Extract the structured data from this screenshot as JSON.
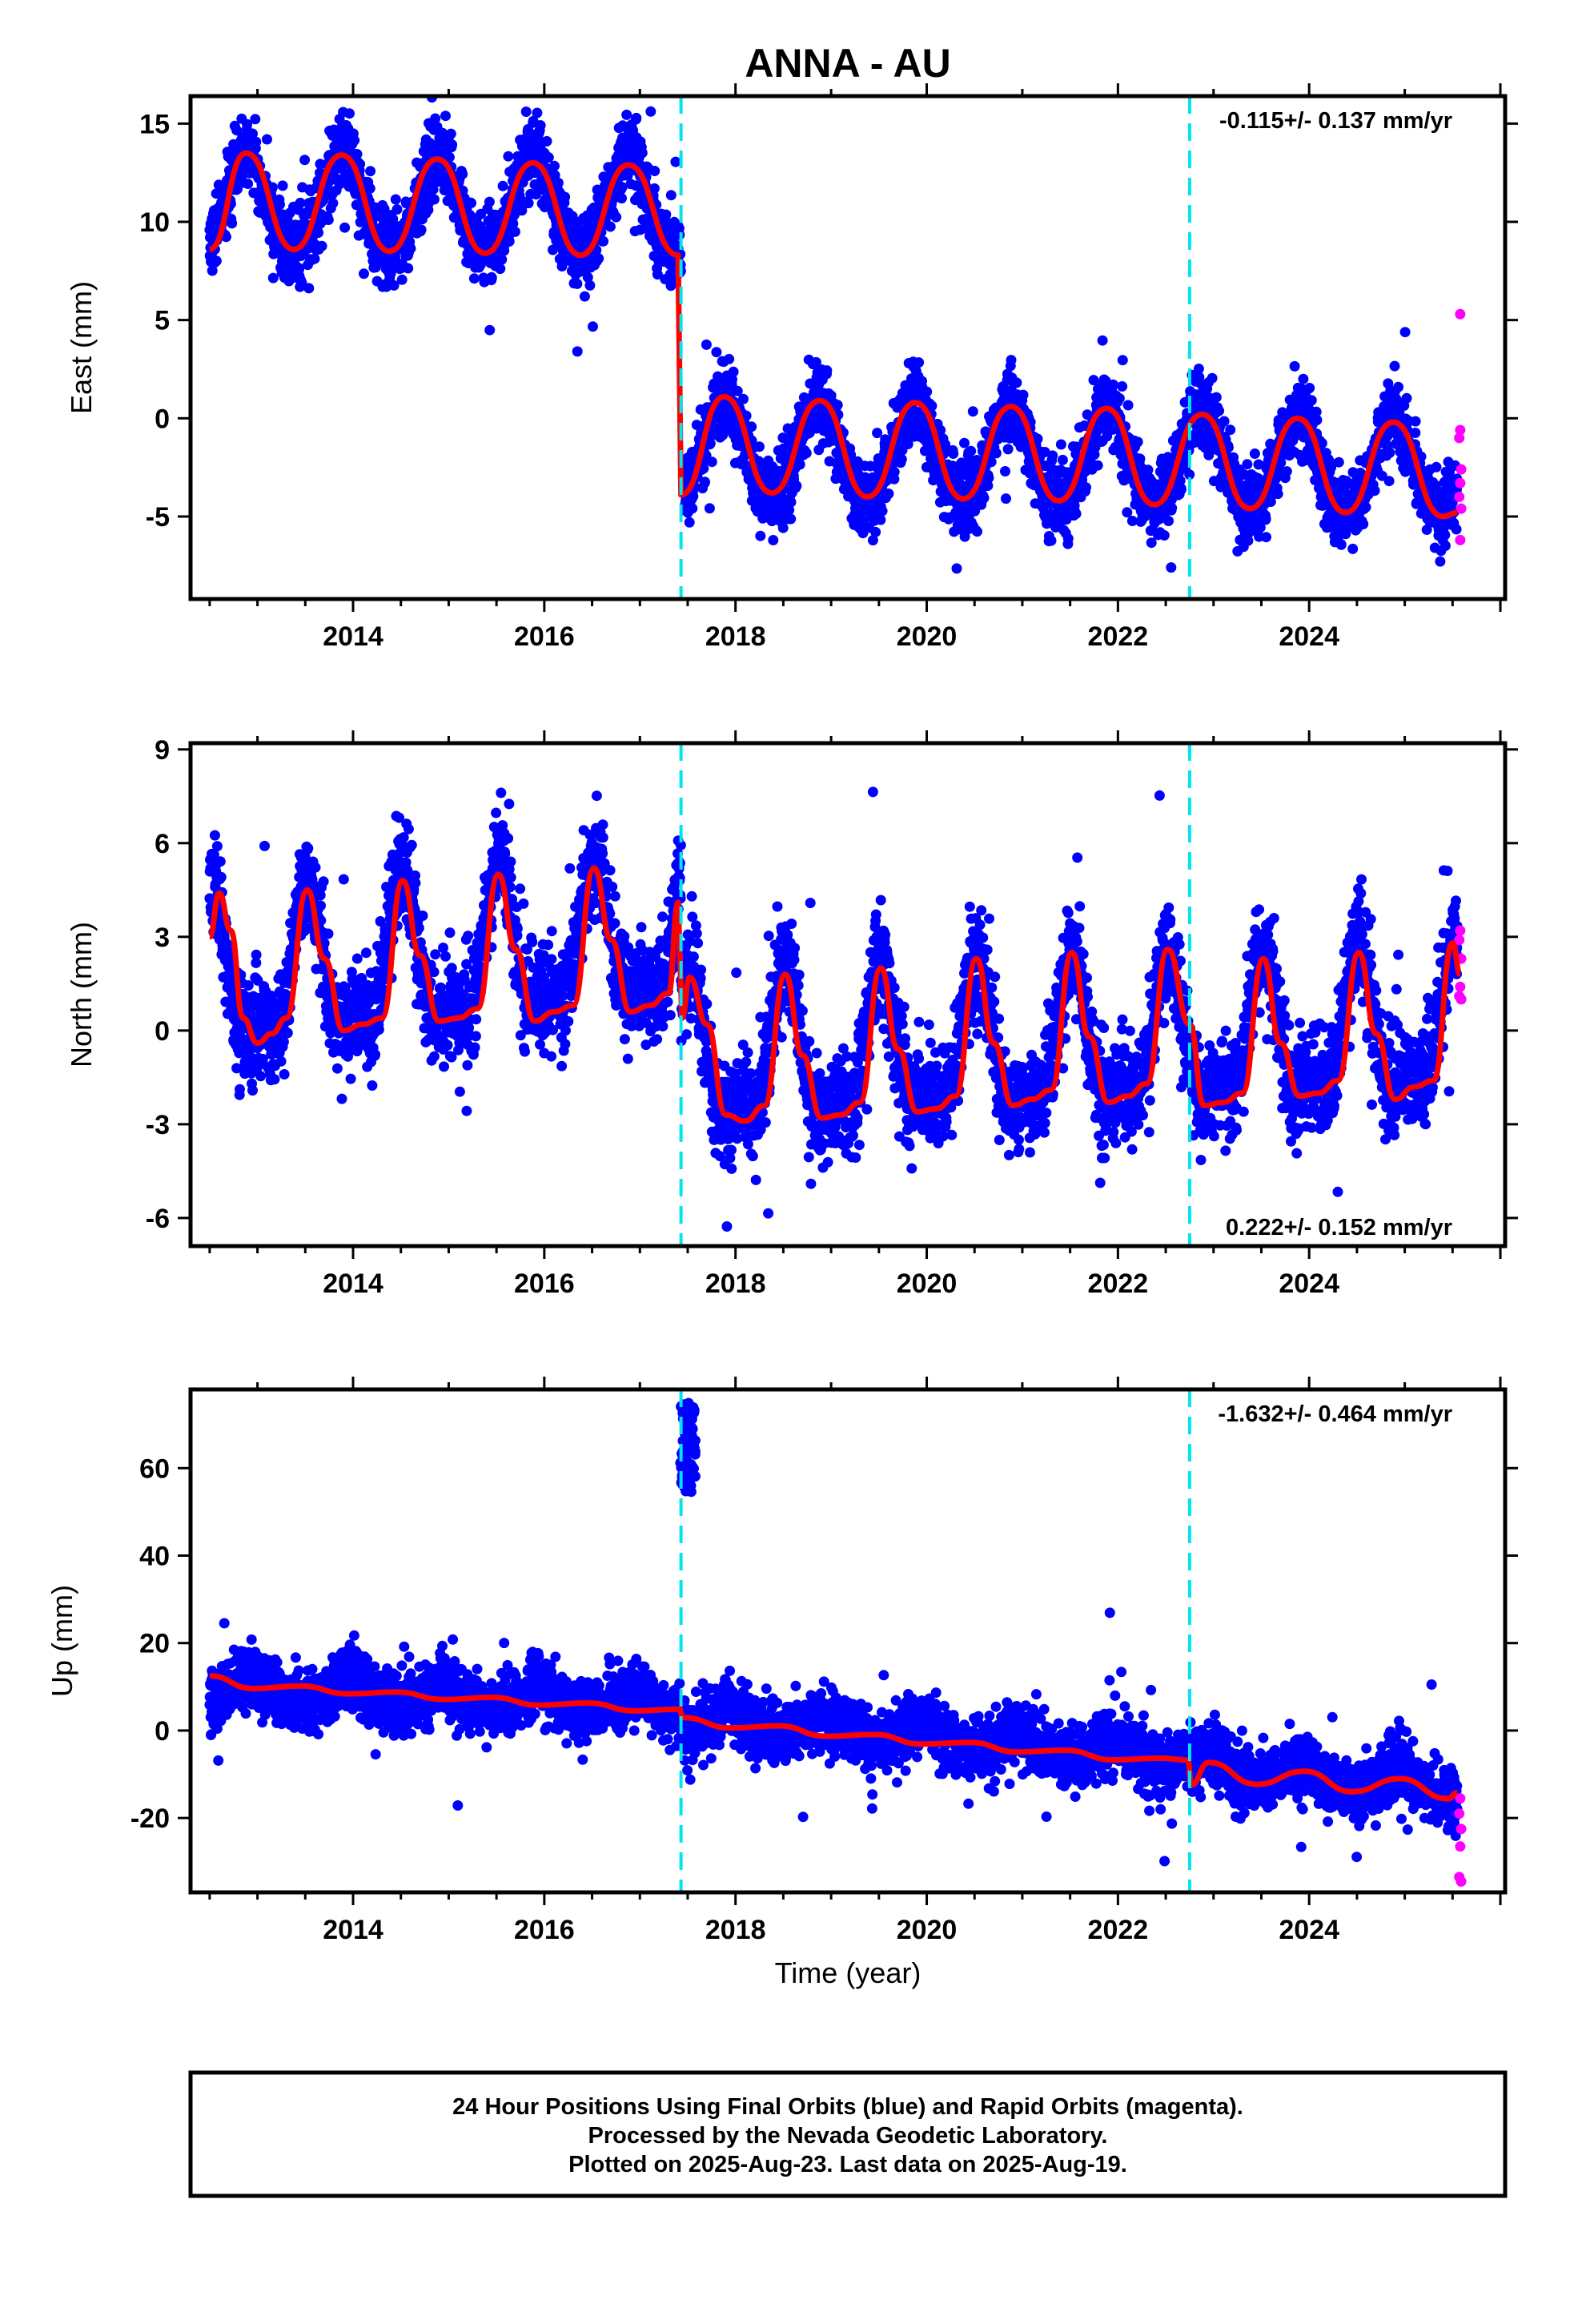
{
  "title": "ANNA - AU",
  "caption": {
    "lines": [
      "24 Hour Positions Using Final Orbits (blue) and Rapid Orbits (magenta).",
      "Processed by the Nevada Geodetic Laboratory.",
      "Plotted on 2025-Aug-23. Last data on 2025-Aug-19."
    ]
  },
  "colors": {
    "final_orbits": "#0000ff",
    "rapid_orbits": "#ff00ff",
    "model_fit": "#ff0000",
    "event_lines": "#00e5ee",
    "frame": "#000000"
  },
  "chart_data": [
    {
      "type": "scatter",
      "component": "east",
      "ylabel": "East (mm)",
      "xlabel": "",
      "xlim": [
        2012.3,
        2026.05
      ],
      "ylim": [
        -9.2,
        16.4
      ],
      "yticks": [
        -5,
        0,
        5,
        10,
        15
      ],
      "xticks": [
        2014,
        2016,
        2018,
        2020,
        2022,
        2024
      ],
      "rate_text": "-0.115+/- 0.137 mm/yr",
      "rate_position": "top-right",
      "event_lines_x": [
        2017.43,
        2022.75
      ],
      "series": [
        {
          "role": "final_orbits",
          "x_start": 2012.5,
          "x_end": 2025.55,
          "segments": [
            {
              "from": 2012.5,
              "to": 2017.43,
              "offset": 10.8,
              "trend": 0.0,
              "annual_amp": 2.4,
              "annual_peak": 0.88,
              "semi_amp": 0.3
            },
            {
              "from": 2017.43,
              "to": 2025.55,
              "offset": -1.6,
              "trend": -0.115,
              "annual_amp": 2.45,
              "annual_peak": 0.88,
              "semi_amp": 0.3
            }
          ],
          "noise_sd": 1.25
        },
        {
          "role": "rapid_orbits",
          "points": [
            [
              2025.58,
              5.3
            ],
            [
              2025.58,
              -0.6
            ],
            [
              2025.57,
              -1.0
            ],
            [
              2025.59,
              -2.6
            ],
            [
              2025.58,
              -3.3
            ],
            [
              2025.57,
              -4.0
            ],
            [
              2025.59,
              -4.6
            ],
            [
              2025.58,
              -6.2
            ]
          ]
        }
      ],
      "model": [
        [
          2012.5,
          8.6
        ],
        [
          2012.88,
          13.5
        ],
        [
          2013.38,
          8.6
        ],
        [
          2013.88,
          13.4
        ],
        [
          2014.38,
          8.5
        ],
        [
          2014.88,
          13.2
        ],
        [
          2015.38,
          8.4
        ],
        [
          2015.88,
          13.0
        ],
        [
          2016.38,
          8.3
        ],
        [
          2016.88,
          12.9
        ],
        [
          2017.4,
          8.3
        ],
        [
          2017.43,
          -3.9
        ],
        [
          2017.88,
          1.1
        ],
        [
          2018.38,
          -3.8
        ],
        [
          2018.88,
          0.9
        ],
        [
          2019.38,
          -4.0
        ],
        [
          2019.88,
          0.8
        ],
        [
          2020.38,
          -4.1
        ],
        [
          2020.88,
          0.6
        ],
        [
          2021.38,
          -4.2
        ],
        [
          2021.88,
          0.5
        ],
        [
          2022.38,
          -4.4
        ],
        [
          2022.88,
          0.2
        ],
        [
          2023.38,
          -4.6
        ],
        [
          2023.88,
          0.0
        ],
        [
          2024.38,
          -4.8
        ],
        [
          2024.88,
          -0.2
        ],
        [
          2025.4,
          -5.0
        ],
        [
          2025.55,
          -4.8
        ]
      ]
    },
    {
      "type": "scatter",
      "component": "north",
      "ylabel": "North (mm)",
      "xlabel": "",
      "xlim": [
        2012.3,
        2026.05
      ],
      "ylim": [
        -6.9,
        9.2
      ],
      "yticks": [
        -6,
        -3,
        0,
        3,
        6,
        9
      ],
      "xticks": [
        2014,
        2016,
        2018,
        2020,
        2022,
        2024
      ],
      "rate_text": "0.222+/- 0.152 mm/yr",
      "rate_position": "bottom-right",
      "event_lines_x": [
        2017.43,
        2022.75
      ],
      "series": [
        {
          "role": "final_orbits",
          "x_start": 2012.5,
          "x_end": 2025.55,
          "segments": [
            {
              "from": 2012.5,
              "to": 2017.43,
              "offset": 1.4,
              "trend": 0.3,
              "annual_amp": 2.2,
              "annual_peak": 0.52,
              "semi_amp": 0.9
            },
            {
              "from": 2017.43,
              "to": 2025.55,
              "offset": -1.1,
              "trend": 0.12,
              "annual_amp": 2.2,
              "annual_peak": 0.52,
              "semi_amp": 0.9
            }
          ],
          "noise_sd": 1.05
        },
        {
          "role": "rapid_orbits",
          "points": [
            [
              2025.58,
              3.2
            ],
            [
              2025.57,
              2.9
            ],
            [
              2025.59,
              2.3
            ],
            [
              2025.58,
              1.4
            ],
            [
              2025.57,
              1.1
            ],
            [
              2025.59,
              1.0
            ]
          ]
        }
      ],
      "model": [
        [
          2012.5,
          3.0
        ],
        [
          2012.6,
          4.4
        ],
        [
          2012.72,
          3.2
        ],
        [
          2012.85,
          0.4
        ],
        [
          2013.0,
          -0.4
        ],
        [
          2013.15,
          -0.1
        ],
        [
          2013.3,
          0.4
        ],
        [
          2013.52,
          4.5
        ],
        [
          2013.7,
          2.3
        ],
        [
          2013.9,
          0.0
        ],
        [
          2014.1,
          0.2
        ],
        [
          2014.3,
          0.4
        ],
        [
          2014.52,
          4.8
        ],
        [
          2014.7,
          2.4
        ],
        [
          2014.9,
          0.3
        ],
        [
          2015.1,
          0.4
        ],
        [
          2015.3,
          0.7
        ],
        [
          2015.52,
          5.0
        ],
        [
          2015.7,
          2.6
        ],
        [
          2015.9,
          0.3
        ],
        [
          2016.1,
          0.6
        ],
        [
          2016.3,
          0.8
        ],
        [
          2016.52,
          5.2
        ],
        [
          2016.7,
          2.9
        ],
        [
          2016.9,
          0.6
        ],
        [
          2017.1,
          0.8
        ],
        [
          2017.3,
          1.2
        ],
        [
          2017.4,
          4.1
        ],
        [
          2017.44,
          0.4
        ],
        [
          2017.52,
          1.7
        ],
        [
          2017.7,
          0.2
        ],
        [
          2017.9,
          -2.7
        ],
        [
          2018.1,
          -2.9
        ],
        [
          2018.3,
          -2.4
        ],
        [
          2018.52,
          1.8
        ],
        [
          2018.7,
          -0.8
        ],
        [
          2018.9,
          -2.8
        ],
        [
          2019.1,
          -2.7
        ],
        [
          2019.3,
          -2.3
        ],
        [
          2019.52,
          2.0
        ],
        [
          2019.7,
          -0.6
        ],
        [
          2019.9,
          -2.6
        ],
        [
          2020.1,
          -2.5
        ],
        [
          2020.3,
          -2.1
        ],
        [
          2020.52,
          2.3
        ],
        [
          2020.7,
          -0.4
        ],
        [
          2020.9,
          -2.4
        ],
        [
          2021.1,
          -2.2
        ],
        [
          2021.3,
          -1.9
        ],
        [
          2021.52,
          2.5
        ],
        [
          2021.7,
          -0.2
        ],
        [
          2021.9,
          -2.3
        ],
        [
          2022.1,
          -2.1
        ],
        [
          2022.3,
          -1.7
        ],
        [
          2022.52,
          2.6
        ],
        [
          2022.75,
          0.2
        ],
        [
          2022.9,
          -2.4
        ],
        [
          2023.1,
          -2.3
        ],
        [
          2023.3,
          -2.0
        ],
        [
          2023.52,
          2.3
        ],
        [
          2023.7,
          -0.4
        ],
        [
          2023.9,
          -2.1
        ],
        [
          2024.1,
          -2.0
        ],
        [
          2024.3,
          -1.6
        ],
        [
          2024.52,
          2.5
        ],
        [
          2024.7,
          -0.1
        ],
        [
          2024.9,
          -2.2
        ],
        [
          2025.1,
          -1.8
        ],
        [
          2025.3,
          -1.6
        ],
        [
          2025.5,
          2.8
        ],
        [
          2025.58,
          1.8
        ]
      ]
    },
    {
      "type": "scatter",
      "component": "up",
      "ylabel": "Up (mm)",
      "xlabel": "Time (year)",
      "xlim": [
        2012.3,
        2026.05
      ],
      "ylim": [
        -37,
        78
      ],
      "yticks": [
        -20,
        0,
        20,
        40,
        60
      ],
      "xticks": [
        2014,
        2016,
        2018,
        2020,
        2022,
        2024
      ],
      "rate_text": "-1.632+/- 0.464 mm/yr",
      "rate_position": "top-right",
      "event_lines_x": [
        2017.43,
        2022.75
      ],
      "series": [
        {
          "role": "final_orbits",
          "x_start": 2012.5,
          "x_end": 2025.55,
          "segments": [
            {
              "from": 2012.5,
              "to": 2017.43,
              "offset": 9.5,
              "trend": -0.75,
              "annual_amp": 2.8,
              "annual_peak": 0.95,
              "semi_amp": 0.6
            },
            {
              "from": 2017.43,
              "to": 2022.75,
              "offset": 3.0,
              "trend": -1.75,
              "annual_amp": 2.8,
              "annual_peak": 0.95,
              "semi_amp": 0.6
            },
            {
              "from": 2022.75,
              "to": 2025.55,
              "offset": -8.0,
              "trend": -1.8,
              "annual_amp": 2.8,
              "annual_peak": 0.95,
              "semi_amp": 0.6
            }
          ],
          "noise_sd": 4.6
        },
        {
          "role": "final_orbits_outliers",
          "x_range": [
            2017.42,
            2017.58
          ],
          "y_range": [
            54,
            75
          ]
        },
        {
          "role": "rapid_orbits",
          "points": [
            [
              2025.58,
              -15.5
            ],
            [
              2025.57,
              -19.0
            ],
            [
              2025.59,
              -22.5
            ],
            [
              2025.58,
              -26.5
            ],
            [
              2025.57,
              -33.5
            ],
            [
              2025.59,
              -34.5
            ]
          ]
        }
      ],
      "model": [
        [
          2012.5,
          12.5
        ],
        [
          2012.95,
          9.6
        ],
        [
          2013.45,
          10.2
        ],
        [
          2013.95,
          8.4
        ],
        [
          2014.45,
          8.8
        ],
        [
          2014.95,
          7.1
        ],
        [
          2015.45,
          7.6
        ],
        [
          2015.95,
          5.8
        ],
        [
          2016.45,
          6.3
        ],
        [
          2016.95,
          4.5
        ],
        [
          2017.42,
          4.9
        ],
        [
          2017.44,
          3.0
        ],
        [
          2017.95,
          0.6
        ],
        [
          2018.45,
          1.1
        ],
        [
          2018.95,
          -1.3
        ],
        [
          2019.45,
          -0.9
        ],
        [
          2019.95,
          -3.1
        ],
        [
          2020.45,
          -2.7
        ],
        [
          2020.95,
          -4.9
        ],
        [
          2021.45,
          -4.5
        ],
        [
          2021.95,
          -6.7
        ],
        [
          2022.45,
          -6.3
        ],
        [
          2022.74,
          -6.8
        ],
        [
          2022.76,
          -12.5
        ],
        [
          2022.95,
          -7.3
        ],
        [
          2023.45,
          -12.3
        ],
        [
          2023.95,
          -9.3
        ],
        [
          2024.45,
          -14.0
        ],
        [
          2024.95,
          -11.0
        ],
        [
          2025.45,
          -15.6
        ],
        [
          2025.55,
          -14.2
        ]
      ]
    }
  ]
}
